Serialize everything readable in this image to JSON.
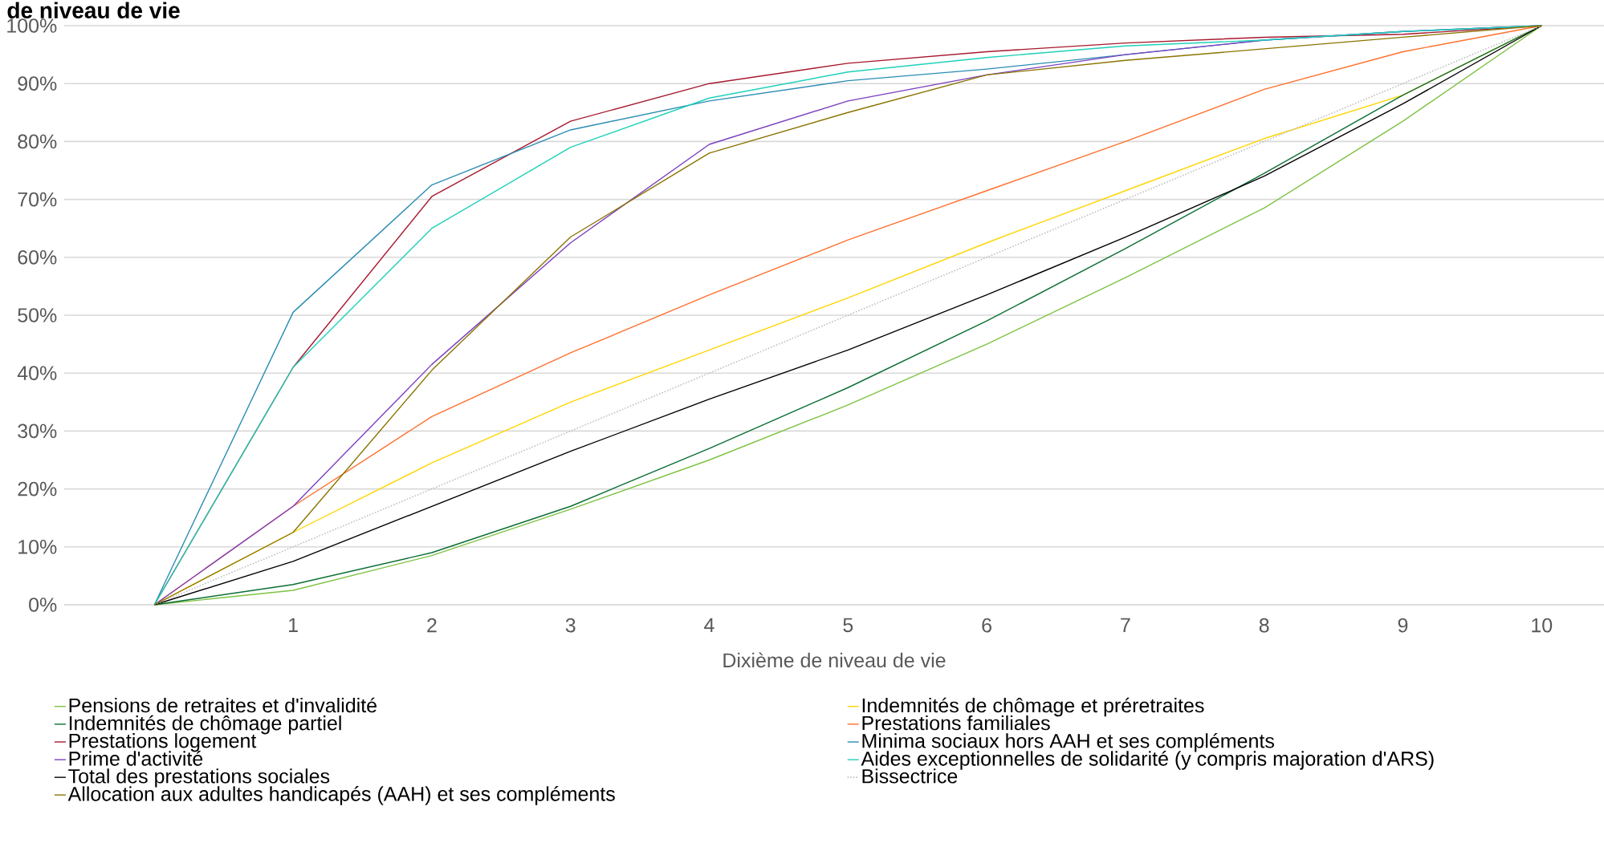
{
  "chart_data": {
    "type": "line",
    "title": "de niveau de vie",
    "xlabel": "Dixième de niveau de vie",
    "x": [
      0,
      1,
      2,
      3,
      4,
      5,
      6,
      7,
      8,
      9,
      10
    ],
    "xlim": [
      -0.65,
      10.45
    ],
    "xticks": [
      1,
      2,
      3,
      4,
      5,
      6,
      7,
      8,
      9,
      10
    ],
    "ylim": [
      0,
      100
    ],
    "yticks": [
      {
        "value": 0,
        "label": "0%"
      },
      {
        "value": 10,
        "label": "10%"
      },
      {
        "value": 20,
        "label": "20%"
      },
      {
        "value": 30,
        "label": "30%"
      },
      {
        "value": 40,
        "label": "40%"
      },
      {
        "value": 50,
        "label": "50%"
      },
      {
        "value": 60,
        "label": "60%"
      },
      {
        "value": 70,
        "label": "70%"
      },
      {
        "value": 80,
        "label": "80%"
      },
      {
        "value": 90,
        "label": "90%"
      },
      {
        "value": 100,
        "label": "100%"
      }
    ],
    "grid": "y",
    "legend": "bottom",
    "series": [
      {
        "name": "Pensions de retraites et d'invalidité",
        "color": "#7dc242",
        "values": [
          0,
          2.5,
          8.5,
          16.5,
          25,
          34.5,
          45,
          56.5,
          68.5,
          83.5,
          100
        ]
      },
      {
        "name": "Indemnités de chômage et préretraites",
        "color": "#ffd500",
        "values": [
          0,
          12.5,
          24.5,
          35,
          44,
          53,
          62.5,
          71.5,
          80.5,
          88,
          100
        ]
      },
      {
        "name": "Indemnités de chômage partiel",
        "color": "#0b6e35",
        "values": [
          0,
          3.5,
          9,
          17,
          27,
          37.5,
          49,
          61.5,
          74.5,
          88,
          100
        ]
      },
      {
        "name": "Prestations familiales",
        "color": "#ff6f2c",
        "values": [
          0,
          17,
          32.5,
          43.5,
          53.5,
          63,
          71.5,
          80,
          89,
          95.5,
          100
        ]
      },
      {
        "name": "Prestations logement",
        "color": "#a6192e",
        "values": [
          0,
          41,
          70.5,
          83.5,
          90,
          93.5,
          95.5,
          97,
          98,
          98.5,
          100
        ]
      },
      {
        "name": "Minima sociaux hors AAH et ses compléments",
        "color": "#2b8cb3",
        "values": [
          0,
          50.5,
          72.5,
          82,
          87,
          90.5,
          92.5,
          95,
          97.5,
          99,
          100
        ]
      },
      {
        "name": "Prime d'activité",
        "color": "#7b3fc0",
        "values": [
          0,
          17,
          41.5,
          62.5,
          79.5,
          87,
          91.5,
          95,
          97.5,
          99,
          100
        ]
      },
      {
        "name": "Aides exceptionnelles de solidarité (y compris majoration d'ARS)",
        "color": "#1fd1b9",
        "values": [
          0,
          41,
          65,
          79,
          87.5,
          92,
          94.5,
          96.5,
          97.5,
          99,
          100
        ]
      },
      {
        "name": "Total des prestations sociales",
        "color": "#000000",
        "values": [
          0,
          7.5,
          17,
          26.5,
          35.5,
          44,
          53.5,
          63.5,
          74,
          86.5,
          100
        ]
      },
      {
        "name": "Bissectrice",
        "color": "#bfbfbf",
        "line_style": "dotted",
        "values": [
          0,
          10,
          20,
          30,
          40,
          50,
          60,
          70,
          80,
          90,
          100
        ]
      },
      {
        "name": "Allocation aux adultes handicapés (AAH) et ses compléments",
        "color": "#8a7400",
        "values": [
          0,
          12.5,
          40.5,
          63.5,
          78,
          85,
          91.5,
          94,
          96,
          98,
          100
        ]
      }
    ]
  }
}
